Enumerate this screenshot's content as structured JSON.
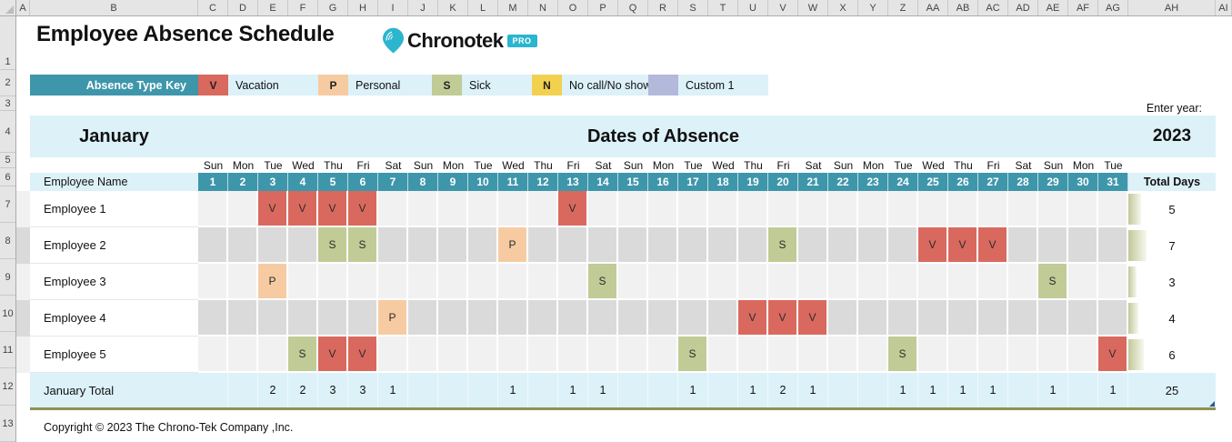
{
  "chrome": {
    "columns": [
      "A",
      "B",
      "C",
      "D",
      "E",
      "F",
      "G",
      "H",
      "I",
      "J",
      "K",
      "L",
      "M",
      "N",
      "O",
      "P",
      "Q",
      "R",
      "S",
      "T",
      "U",
      "V",
      "W",
      "X",
      "Y",
      "Z",
      "AA",
      "AB",
      "AC",
      "AD",
      "AE",
      "AF",
      "AG",
      "AH",
      "AI"
    ],
    "rows": [
      "1",
      "2",
      "3",
      "4",
      "5",
      "6",
      "7",
      "8",
      "9",
      "10",
      "11",
      "12",
      "13"
    ]
  },
  "title": "Employee Absence Schedule",
  "logo": {
    "text": "Chronotek",
    "badge": "PRO"
  },
  "key": {
    "label": "Absence Type Key",
    "items": [
      {
        "code": "V",
        "label": "Vacation",
        "color": "#D9695E"
      },
      {
        "code": "P",
        "label": "Personal",
        "color": "#F7CBA2"
      },
      {
        "code": "S",
        "label": "Sick",
        "color": "#C0CB96"
      },
      {
        "code": "N",
        "label": "No call/No show",
        "color": "#F2D14E"
      },
      {
        "code": "",
        "label": "Custom 1",
        "color": "#B3B9DB"
      }
    ]
  },
  "enter_year_label": "Enter year:",
  "calendar": {
    "month_label": "January",
    "header_title": "Dates of Absence",
    "year": "2023",
    "employee_name_header": "Employee Name",
    "total_days_header": "Total Days",
    "day_names": [
      "Sun",
      "Mon",
      "Tue",
      "Wed",
      "Thu",
      "Fri",
      "Sat",
      "Sun",
      "Mon",
      "Tue",
      "Wed",
      "Thu",
      "Fri",
      "Sat",
      "Sun",
      "Mon",
      "Tue",
      "Wed",
      "Thu",
      "Fri",
      "Sat",
      "Sun",
      "Mon",
      "Tue",
      "Wed",
      "Thu",
      "Fri",
      "Sat",
      "Sun",
      "Mon",
      "Tue"
    ],
    "day_numbers": [
      1,
      2,
      3,
      4,
      5,
      6,
      7,
      8,
      9,
      10,
      11,
      12,
      13,
      14,
      15,
      16,
      17,
      18,
      19,
      20,
      21,
      22,
      23,
      24,
      25,
      26,
      27,
      28,
      29,
      30,
      31
    ],
    "employees": [
      {
        "name": "Employee 1",
        "absences": {
          "3": "V",
          "4": "V",
          "5": "V",
          "6": "V",
          "13": "V"
        },
        "total": 5
      },
      {
        "name": "Employee 2",
        "absences": {
          "5": "S",
          "6": "S",
          "11": "P",
          "20": "S",
          "25": "V",
          "26": "V",
          "27": "V"
        },
        "total": 7
      },
      {
        "name": "Employee 3",
        "absences": {
          "3": "P",
          "14": "S",
          "29": "S"
        },
        "total": 3
      },
      {
        "name": "Employee 4",
        "absences": {
          "7": "P",
          "19": "V",
          "20": "V",
          "21": "V"
        },
        "total": 4
      },
      {
        "name": "Employee 5",
        "absences": {
          "4": "S",
          "5": "V",
          "6": "V",
          "17": "S",
          "24": "S",
          "31": "V"
        },
        "total": 6
      }
    ],
    "totals_row": {
      "label": "January Total",
      "day_totals": {
        "3": 2,
        "4": 2,
        "5": 3,
        "6": 3,
        "7": 1,
        "11": 1,
        "13": 1,
        "14": 1,
        "17": 1,
        "19": 1,
        "20": 2,
        "21": 1,
        "24": 1,
        "25": 1,
        "26": 1,
        "27": 1,
        "29": 1,
        "31": 1
      },
      "grand_total": 25
    }
  },
  "footer": {
    "copyright": "Copyright © 2023 The Chrono-Tek Company ,Inc."
  },
  "theme": {
    "teal": "#3E96AB",
    "light_blue": "#DDF1F9",
    "row_light": "#F1F1F1",
    "row_dark": "#DADADA",
    "total_border": "#8F914F",
    "data_bar": "#C3C89A",
    "brand": "#2BB5CF"
  }
}
